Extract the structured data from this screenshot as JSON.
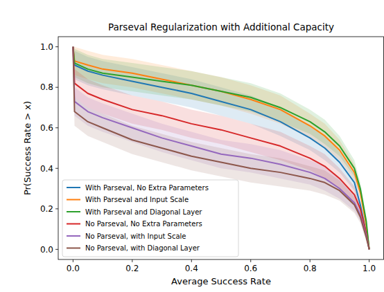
{
  "chart_data": {
    "type": "line",
    "title": "Parseval Regularization with Additional Capacity",
    "x_label": "Average Success Rate",
    "y_label": "Pr(Success Rate > x)",
    "x": [
      0,
      0.005,
      0.05,
      0.1,
      0.2,
      0.3,
      0.4,
      0.5,
      0.6,
      0.7,
      0.8,
      0.85,
      0.9,
      0.95,
      0.97,
      0.99,
      1.0
    ],
    "xlim": [
      -0.05,
      1.05
    ],
    "ylim": [
      -0.05,
      1.05
    ],
    "xticks": [
      {
        "value": 0,
        "label": "0.0"
      },
      0.2,
      0.4,
      0.6,
      0.8,
      {
        "value": 1,
        "label": "1.0"
      }
    ],
    "yticks": [
      {
        "value": 0,
        "label": "0.0"
      },
      0.2,
      0.4,
      0.6,
      0.8,
      {
        "value": 1,
        "label": "1.0"
      }
    ],
    "grid": false,
    "legend": "lower left",
    "series": [
      {
        "name": "With Parseval, No Extra Parameters",
        "color": "#1f77b4",
        "values": [
          1.0,
          0.91,
          0.88,
          0.86,
          0.83,
          0.8,
          0.77,
          0.73,
          0.69,
          0.63,
          0.55,
          0.5,
          0.43,
          0.33,
          0.22,
          0.08,
          0.0
        ],
        "error": [
          0,
          0.07,
          0.07,
          0.07,
          0.07,
          0.07,
          0.07,
          0.07,
          0.07,
          0.07,
          0.06,
          0.06,
          0.05,
          0.04,
          0.03,
          0.02,
          0
        ]
      },
      {
        "name": "With Parseval and Input Scale",
        "color": "#ff7f0e",
        "values": [
          1.0,
          0.93,
          0.91,
          0.89,
          0.87,
          0.84,
          0.81,
          0.78,
          0.74,
          0.69,
          0.61,
          0.56,
          0.49,
          0.38,
          0.28,
          0.12,
          0.0
        ],
        "error": [
          0,
          0.07,
          0.07,
          0.07,
          0.07,
          0.07,
          0.07,
          0.07,
          0.07,
          0.07,
          0.06,
          0.06,
          0.05,
          0.04,
          0.03,
          0.02,
          0
        ]
      },
      {
        "name": "With Parseval and Diagonal Layer",
        "color": "#2ca02c",
        "values": [
          1.0,
          0.92,
          0.89,
          0.87,
          0.85,
          0.83,
          0.81,
          0.78,
          0.75,
          0.7,
          0.63,
          0.58,
          0.51,
          0.4,
          0.3,
          0.14,
          0.0
        ],
        "error": [
          0,
          0.07,
          0.07,
          0.07,
          0.07,
          0.07,
          0.07,
          0.07,
          0.07,
          0.07,
          0.06,
          0.06,
          0.05,
          0.04,
          0.03,
          0.02,
          0
        ]
      },
      {
        "name": "No Parseval, No Extra Parameters",
        "color": "#d62728",
        "values": [
          1.0,
          0.82,
          0.77,
          0.74,
          0.69,
          0.66,
          0.62,
          0.59,
          0.55,
          0.51,
          0.45,
          0.41,
          0.35,
          0.27,
          0.2,
          0.08,
          0.0
        ],
        "error": [
          0,
          0.07,
          0.07,
          0.07,
          0.07,
          0.07,
          0.07,
          0.07,
          0.07,
          0.07,
          0.06,
          0.06,
          0.05,
          0.04,
          0.03,
          0.02,
          0
        ]
      },
      {
        "name": "No Parseval, with Input Scale",
        "color": "#9467bd",
        "values": [
          1.0,
          0.73,
          0.68,
          0.65,
          0.6,
          0.55,
          0.51,
          0.47,
          0.45,
          0.42,
          0.38,
          0.35,
          0.3,
          0.23,
          0.17,
          0.07,
          0.0
        ],
        "error": [
          0,
          0.07,
          0.07,
          0.07,
          0.07,
          0.07,
          0.07,
          0.07,
          0.07,
          0.07,
          0.06,
          0.06,
          0.05,
          0.04,
          0.03,
          0.02,
          0
        ]
      },
      {
        "name": "No Parseval, with Diagonal Layer",
        "color": "#8c564b",
        "values": [
          1.0,
          0.68,
          0.63,
          0.6,
          0.54,
          0.5,
          0.46,
          0.43,
          0.4,
          0.38,
          0.35,
          0.33,
          0.29,
          0.22,
          0.16,
          0.06,
          0.0
        ],
        "error": [
          0,
          0.07,
          0.07,
          0.07,
          0.07,
          0.07,
          0.07,
          0.07,
          0.07,
          0.07,
          0.06,
          0.06,
          0.05,
          0.04,
          0.03,
          0.02,
          0
        ]
      }
    ]
  }
}
